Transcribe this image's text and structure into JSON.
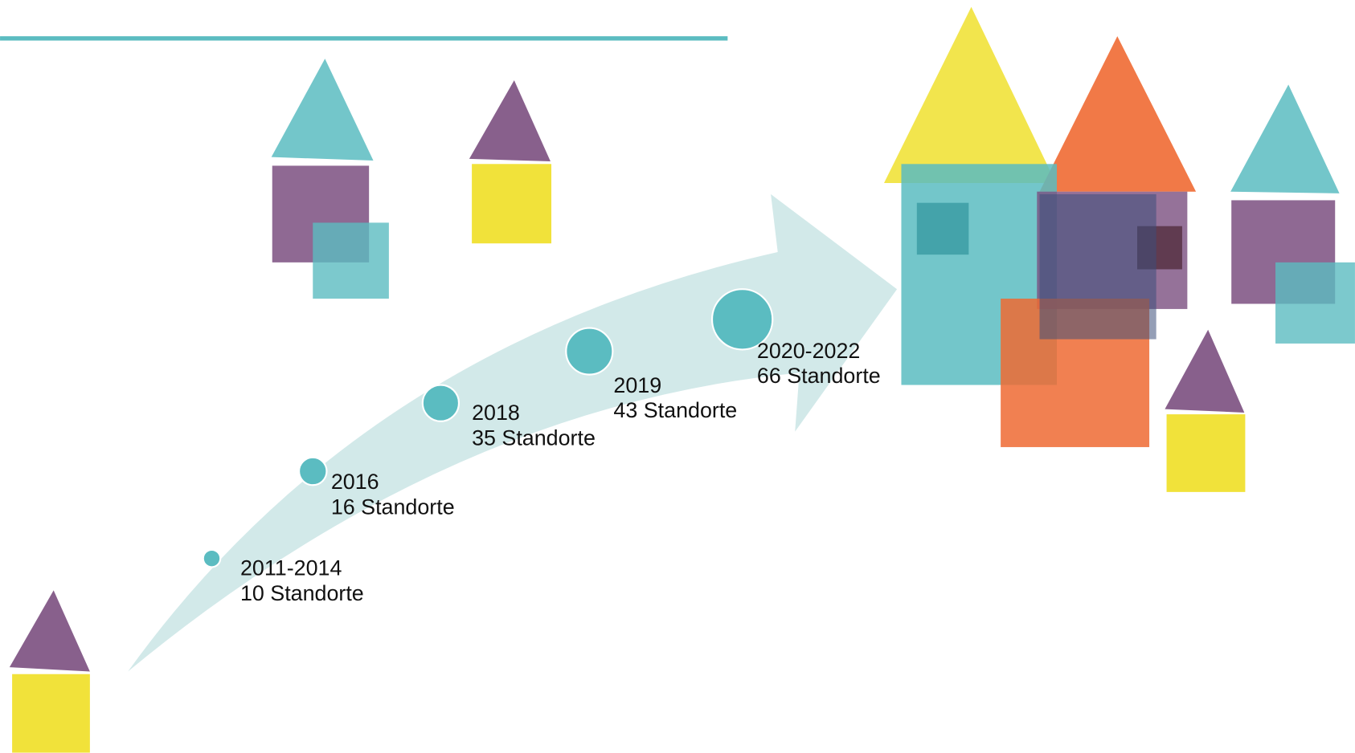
{
  "milestones": [
    {
      "period": "2011-2014",
      "count": "10 Standorte"
    },
    {
      "period": "2016",
      "count": "16 Standorte"
    },
    {
      "period": "2018",
      "count": "35 Standorte"
    },
    {
      "period": "2019",
      "count": "43 Standorte"
    },
    {
      "period": "2020-2022",
      "count": "66 Standorte"
    }
  ]
}
